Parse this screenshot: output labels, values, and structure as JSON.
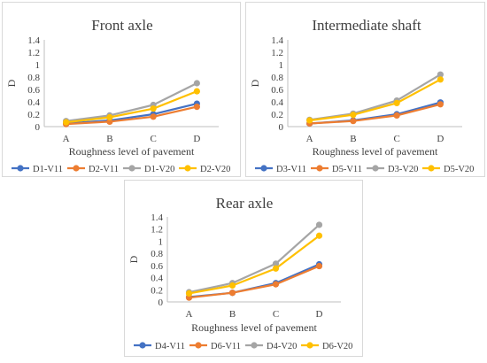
{
  "chart_data": [
    {
      "type": "line",
      "title": "Front axle",
      "xlabel": "Roughness level  of pavement",
      "ylabel": "D",
      "categories": [
        "A",
        "B",
        "C",
        "D"
      ],
      "ylim": [
        0,
        1.4
      ],
      "yticks": [
        "0",
        "0.2",
        "0.4",
        "0.6",
        "0.8",
        "1",
        "1.2",
        "1.4"
      ],
      "grid": "none",
      "legend": "bottom",
      "series": [
        {
          "name": "D1-V11",
          "color": "#4472c4",
          "values": [
            0.05,
            0.1,
            0.2,
            0.37
          ]
        },
        {
          "name": "D2-V11",
          "color": "#ed7d31",
          "values": [
            0.04,
            0.08,
            0.16,
            0.32
          ]
        },
        {
          "name": "D1-V20",
          "color": "#a5a5a5",
          "values": [
            0.09,
            0.18,
            0.35,
            0.7
          ]
        },
        {
          "name": "D2-V20",
          "color": "#ffc000",
          "values": [
            0.07,
            0.15,
            0.29,
            0.57
          ]
        }
      ]
    },
    {
      "type": "line",
      "title": "Intermediate shaft",
      "xlabel": "Roughness level  of pavement",
      "ylabel": "D",
      "categories": [
        "A",
        "B",
        "C",
        "D"
      ],
      "ylim": [
        0,
        1.4
      ],
      "yticks": [
        "0",
        "0.2",
        "0.4",
        "0.6",
        "0.8",
        "1",
        "1.2",
        "1.4"
      ],
      "grid": "none",
      "legend": "bottom",
      "series": [
        {
          "name": "D3-V11",
          "color": "#4472c4",
          "values": [
            0.05,
            0.1,
            0.2,
            0.39
          ]
        },
        {
          "name": "D5-V11",
          "color": "#ed7d31",
          "values": [
            0.05,
            0.09,
            0.18,
            0.36
          ]
        },
        {
          "name": "D3-V20",
          "color": "#a5a5a5",
          "values": [
            0.11,
            0.21,
            0.42,
            0.84
          ]
        },
        {
          "name": "D5-V20",
          "color": "#ffc000",
          "values": [
            0.1,
            0.19,
            0.38,
            0.76
          ]
        }
      ]
    },
    {
      "type": "line",
      "title": "Rear axle",
      "xlabel": "Roughness level  of pavement",
      "ylabel": "D",
      "categories": [
        "A",
        "B",
        "C",
        "D"
      ],
      "ylim": [
        0,
        1.4
      ],
      "yticks": [
        "0",
        "0.2",
        "0.4",
        "0.6",
        "0.8",
        "1",
        "1.2",
        "1.4"
      ],
      "grid": "none",
      "legend": "bottom",
      "series": [
        {
          "name": "D4-V11",
          "color": "#4472c4",
          "values": [
            0.08,
            0.15,
            0.31,
            0.62
          ]
        },
        {
          "name": "D6-V11",
          "color": "#ed7d31",
          "values": [
            0.07,
            0.15,
            0.29,
            0.59
          ]
        },
        {
          "name": "D4-V20",
          "color": "#a5a5a5",
          "values": [
            0.16,
            0.31,
            0.63,
            1.27
          ]
        },
        {
          "name": "D6-V20",
          "color": "#ffc000",
          "values": [
            0.14,
            0.27,
            0.55,
            1.09
          ]
        }
      ]
    }
  ]
}
